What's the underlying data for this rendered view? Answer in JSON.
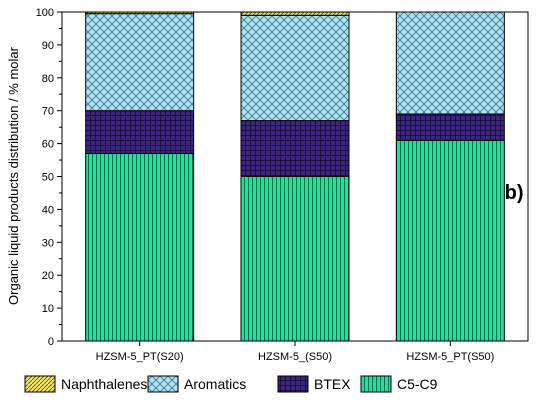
{
  "panel_label": "(b)",
  "chart_data": {
    "type": "bar",
    "stacked": true,
    "categories": [
      "HZSM-5_PT(S20)",
      "HZSM-5_(S50)",
      "HZSM-5_PT(S50)"
    ],
    "series": [
      {
        "name": "C5-C9",
        "values": [
          57,
          50,
          61
        ],
        "color": "#14e89a",
        "pattern": "vertical-lines"
      },
      {
        "name": "BTEX",
        "values": [
          13,
          17,
          8
        ],
        "color": "#3d2580",
        "pattern": "grid"
      },
      {
        "name": "Aromatics",
        "values": [
          29.5,
          32,
          31
        ],
        "color": "#a9e4f6",
        "pattern": "crosshatch"
      },
      {
        "name": "Naphthalenes",
        "values": [
          0.5,
          1,
          0
        ],
        "color": "#f2e86a",
        "pattern": "diagonal"
      }
    ],
    "legend_order": [
      "Naphthalenes",
      "Aromatics",
      "BTEX",
      "C5-C9"
    ],
    "xlabel": "",
    "ylabel": "Organic liquid products distribution / % molar",
    "ylim": [
      0,
      100
    ],
    "yticks": [
      0,
      10,
      20,
      30,
      40,
      50,
      60,
      70,
      80,
      90,
      100
    ],
    "grid": false,
    "legend_position": "bottom"
  }
}
